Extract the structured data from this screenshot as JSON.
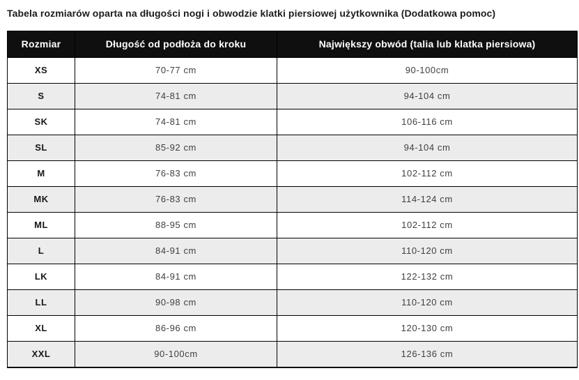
{
  "page": {
    "title": "Tabela rozmiarów oparta na długości nogi i obwodzie klatki piersiowej użytkownika (Dodatkowa pomoc)"
  },
  "table": {
    "headers": {
      "size": "Rozmiar",
      "leg_length": "Długość od podłoża do kroku",
      "circumference": "Największy obwód (talia lub klatka piersiowa)"
    },
    "rows": [
      {
        "size": "XS",
        "leg_length": "70-77 cm",
        "circumference": "90-100cm"
      },
      {
        "size": "S",
        "leg_length": "74-81 cm",
        "circumference": "94-104 cm"
      },
      {
        "size": "SK",
        "leg_length": "74-81 cm",
        "circumference": "106-116 cm"
      },
      {
        "size": "SL",
        "leg_length": "85-92 cm",
        "circumference": "94-104 cm"
      },
      {
        "size": "M",
        "leg_length": "76-83 cm",
        "circumference": "102-112 cm"
      },
      {
        "size": "MK",
        "leg_length": "76-83 cm",
        "circumference": "114-124 cm"
      },
      {
        "size": "ML",
        "leg_length": "88-95 cm",
        "circumference": "102-112 cm"
      },
      {
        "size": "L",
        "leg_length": "84-91 cm",
        "circumference": "110-120 cm"
      },
      {
        "size": "LK",
        "leg_length": "84-91 cm",
        "circumference": "122-132 cm"
      },
      {
        "size": "LL",
        "leg_length": "90-98 cm",
        "circumference": "110-120 cm"
      },
      {
        "size": "XL",
        "leg_length": "86-96 cm",
        "circumference": "120-130 cm"
      },
      {
        "size": "XXL",
        "leg_length": "90-100cm",
        "circumference": "126-136 cm"
      }
    ],
    "colors": {
      "header_background": "#0f0f0f",
      "header_text": "#ffffff",
      "alt_row_background": "#ececec",
      "border": "#000000",
      "body_text": "#3f3f3f"
    }
  }
}
